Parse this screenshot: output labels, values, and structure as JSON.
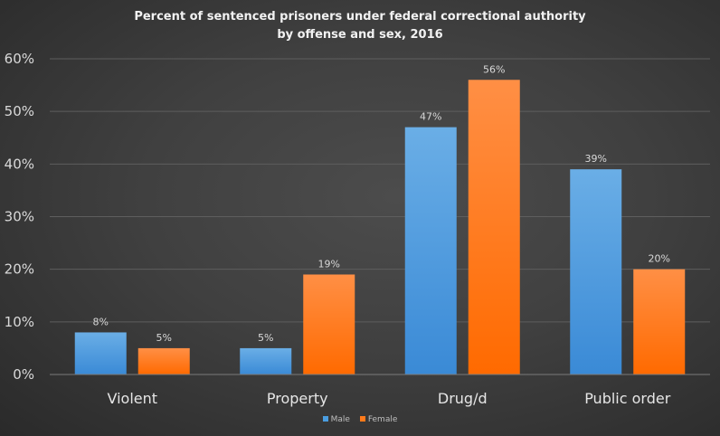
{
  "chart_data": {
    "type": "bar",
    "title": "Percent of sentenced prisoners under federal correctional authority",
    "subtitle": "by offense and sex, 2016",
    "categories": [
      "Violent",
      "Property",
      "Drug/d",
      "Public order"
    ],
    "series": [
      {
        "name": "Male",
        "color": "#4a9de0",
        "values": [
          8,
          5,
          47,
          39
        ],
        "labels": [
          "8%",
          "5%",
          "47%",
          "39%"
        ]
      },
      {
        "name": "Female",
        "color": "#ff7a1a",
        "values": [
          5,
          19,
          56,
          20
        ],
        "labels": [
          "5%",
          "19%",
          "56%",
          "20%"
        ]
      }
    ],
    "yticks": [
      "0%",
      "10%",
      "20%",
      "30%",
      "40%",
      "50%",
      "60%"
    ],
    "ylim": [
      0,
      60
    ],
    "grid": true,
    "legend": "bottom"
  }
}
